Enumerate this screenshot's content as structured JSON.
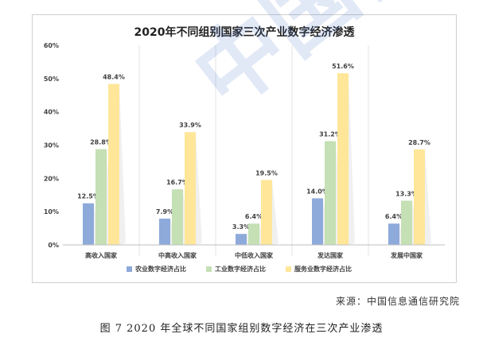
{
  "chart_data": {
    "type": "bar",
    "title": "2020年不同组别国家三次产业数字经济渗透",
    "categories": [
      "高收入国家",
      "中高收入国家",
      "中低收入国家",
      "发达国家",
      "发展中国家"
    ],
    "series": [
      {
        "name": "农业数字经济占比",
        "color": "#8eaadb",
        "values": [
          12.5,
          7.9,
          3.3,
          14.0,
          6.4
        ],
        "labels": [
          "12.5%",
          "7.9%",
          "3.3%",
          "14.0%",
          "6.4%"
        ]
      },
      {
        "name": "工业数字经济占比",
        "color": "#c5e0b4",
        "values": [
          28.8,
          16.7,
          6.4,
          31.2,
          13.3
        ],
        "labels": [
          "28.8%",
          "16.7%",
          "6.4%",
          "31.2%",
          "13.3%"
        ]
      },
      {
        "name": "服务业数字经济占比",
        "color": "#ffe699",
        "values": [
          48.4,
          33.9,
          19.5,
          51.6,
          28.7
        ],
        "labels": [
          "48.4%",
          "33.9%",
          "19.5%",
          "51.6%",
          "28.7%"
        ]
      }
    ],
    "yticks": [
      0,
      10,
      20,
      30,
      40,
      50,
      60
    ],
    "ytick_labels": [
      "0%",
      "10%",
      "20%",
      "30%",
      "40%",
      "50%",
      "60%"
    ],
    "ylim": [
      0,
      60
    ],
    "grid": false,
    "legend_position": "bottom"
  },
  "source": "来源：中国信息通信研究院",
  "caption": "图 7 2020 年全球不同国家组别数字经济在三次产业渗透",
  "watermark": "中国信",
  "colors": {
    "axis": "#bfbfbf",
    "text": "#404040",
    "title": "#222222"
  }
}
